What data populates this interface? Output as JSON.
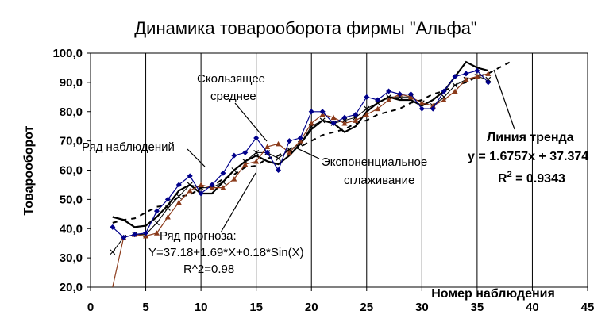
{
  "chart_data": {
    "type": "line",
    "title": "Динамика товарооборота фирмы \"Альфа\"",
    "xlabel": "Номер наблюдения",
    "ylabel": "Товарооборот",
    "xlim": [
      0,
      45
    ],
    "ylim": [
      20,
      100
    ],
    "x_ticks": [
      "0",
      "5",
      "10",
      "15",
      "20",
      "25",
      "30",
      "35",
      "40",
      "45"
    ],
    "y_ticks": [
      "20,0",
      "30,0",
      "40,0",
      "50,0",
      "60,0",
      "70,0",
      "80,0",
      "90,0",
      "100,0"
    ],
    "grid": "vertical",
    "colors": {
      "observations": "#00008b",
      "forecast": "#8b3a1a",
      "exponential": "#000000",
      "moving_average": "#000000",
      "trend": "#000000"
    },
    "series": [
      {
        "key": "observations",
        "marker": "diamond",
        "x": [
          2,
          3,
          4,
          5,
          6,
          7,
          8,
          9,
          10,
          11,
          12,
          13,
          14,
          15,
          16,
          17,
          18,
          19,
          20,
          21,
          22,
          23,
          24,
          25,
          26,
          27,
          28,
          29,
          30,
          31,
          32,
          33,
          34,
          35,
          36
        ],
        "y": [
          40.5,
          37,
          38,
          38.5,
          46,
          50,
          55,
          58,
          52,
          55,
          59,
          65,
          66,
          71,
          66,
          60,
          70,
          71,
          80,
          80,
          76,
          78,
          79,
          85,
          84,
          87,
          86,
          86,
          81,
          81,
          87,
          92,
          93,
          94,
          90
        ]
      },
      {
        "key": "forecast",
        "marker": "triangle",
        "x": [
          2,
          3,
          4,
          5,
          6,
          7,
          8,
          9,
          10,
          11,
          12,
          13,
          14,
          15,
          16,
          17,
          18,
          19,
          20,
          21,
          22,
          23,
          24,
          25,
          26,
          27,
          28,
          29,
          30,
          31,
          32,
          33,
          34,
          35,
          36
        ],
        "y": [
          20,
          37,
          38,
          37.5,
          38.5,
          44,
          49,
          53,
          55,
          54,
          54,
          57,
          62,
          63,
          68,
          69,
          66,
          70,
          76,
          79,
          78,
          76,
          77,
          79,
          81,
          84,
          86,
          85,
          83,
          82,
          84,
          87,
          91,
          92,
          93
        ]
      },
      {
        "key": "exponential",
        "marker": "x",
        "x": [
          2,
          3,
          4,
          5,
          6,
          7,
          8,
          9,
          10,
          11,
          12,
          13,
          14,
          15,
          16,
          17,
          18,
          19,
          20,
          21,
          22,
          23,
          24,
          25,
          26,
          27,
          28,
          29,
          30,
          31,
          32,
          33,
          34,
          35,
          36
        ],
        "y": [
          32,
          37,
          38,
          38,
          42,
          47,
          51,
          55,
          54,
          54,
          56,
          60,
          63,
          66,
          66,
          64,
          67,
          69,
          75,
          77,
          76,
          77,
          78,
          81,
          83,
          85,
          85,
          85,
          83,
          82,
          85,
          89,
          91,
          92,
          91
        ]
      },
      {
        "key": "moving_average",
        "marker": "none",
        "x": [
          2,
          3,
          4,
          5,
          6,
          7,
          8,
          9,
          10,
          11,
          12,
          13,
          14,
          15,
          16,
          17,
          18,
          19,
          20,
          21,
          22,
          23,
          24,
          25,
          26,
          27,
          28,
          29,
          30,
          31,
          32,
          33,
          34,
          35,
          36
        ],
        "y": [
          44,
          43,
          40.5,
          41,
          44,
          48,
          53,
          55,
          52,
          52,
          56,
          60,
          63,
          65,
          63,
          62,
          65,
          69,
          74,
          77,
          76,
          73,
          75,
          80,
          83,
          85,
          84,
          84,
          82,
          84,
          87,
          92,
          97,
          95,
          94
        ]
      },
      {
        "key": "trend",
        "marker": "none",
        "style": "dashed",
        "x": [
          2,
          3,
          4,
          5,
          6,
          7,
          8,
          9,
          10,
          11,
          12,
          13,
          14,
          15,
          16,
          17,
          18,
          19,
          20,
          21,
          22,
          23,
          24,
          25,
          26,
          27,
          28,
          29,
          30,
          31,
          32,
          33,
          34,
          35,
          36,
          37,
          38
        ],
        "y": [
          42,
          43,
          43.5,
          45.5,
          47.5,
          48,
          51,
          51.5,
          54,
          54.5,
          57,
          58.5,
          61,
          61.5,
          64,
          65,
          67,
          68,
          70,
          72,
          73,
          74,
          76,
          77,
          79,
          80,
          81,
          83,
          84,
          86,
          87,
          89,
          90,
          92,
          93,
          95,
          97
        ]
      }
    ],
    "annotations": {
      "observations_label": "Ряд наблюдений",
      "moving_avg_label_1": "Скользящее",
      "moving_avg_label_2": "среднее",
      "exp_smoothing_label_1": "Экспоненциальное",
      "exp_smoothing_label_2": "сглаживание",
      "trend_title": "Линия тренда",
      "trend_equation": "y = 1.6757x + 37.374",
      "trend_r2_prefix": "R",
      "trend_r2_sup": "2",
      "trend_r2_value": " = 0.9343",
      "forecast_label_1": "Ряд прогноза:",
      "forecast_label_2": "Y=37.18+1.69*X+0.18*Sin(X)",
      "forecast_label_3": "R^2=0.98"
    }
  }
}
